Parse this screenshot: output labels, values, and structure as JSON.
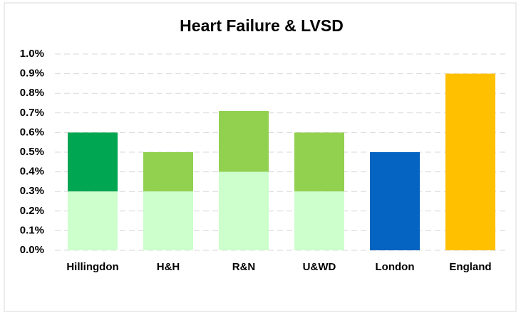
{
  "chart_data": {
    "type": "stacked-bar",
    "title": "Heart Failure & LVSD",
    "categories": [
      "Hillingdon",
      "H&H",
      "R&N",
      "U&WD",
      "London",
      "England"
    ],
    "series": [
      {
        "values": [
          0.3,
          0.3,
          0.4,
          0.3,
          0.5,
          0.9
        ],
        "colors": [
          "#ccffcc",
          "#ccffcc",
          "#ccffcc",
          "#ccffcc",
          "#0563c1",
          "#ffc000"
        ]
      },
      {
        "values": [
          0.3,
          0.2,
          0.31,
          0.3,
          null,
          null
        ],
        "colors": [
          "#00a651",
          "#92d050",
          "#92d050",
          "#92d050",
          null,
          null
        ]
      }
    ],
    "ylim": [
      0,
      1.0
    ],
    "yticks": [
      {
        "value": 0,
        "label": "0.0%"
      },
      {
        "value": 0.1,
        "label": "0.1%"
      },
      {
        "value": 0.2,
        "label": "0.2%"
      },
      {
        "value": 0.3,
        "label": "0.3%"
      },
      {
        "value": 0.4,
        "label": "0.4%"
      },
      {
        "value": 0.5,
        "label": "0.5%"
      },
      {
        "value": 0.6,
        "label": "0.6%"
      },
      {
        "value": 0.7,
        "label": "0.7%"
      },
      {
        "value": 0.8,
        "label": "0.8%"
      },
      {
        "value": 0.9,
        "label": "0.9%"
      },
      {
        "value": 1.0,
        "label": "1.0%"
      }
    ],
    "grid": true
  }
}
